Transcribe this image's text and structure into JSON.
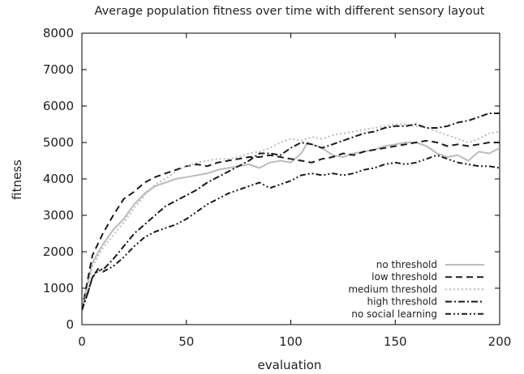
{
  "chart_data": {
    "type": "line",
    "title": "Average population fitness over time with different sensory layout",
    "xlabel": "evaluation",
    "ylabel": "fitness",
    "xlim": [
      0,
      200
    ],
    "ylim": [
      0,
      8000
    ],
    "xticks": [
      0,
      50,
      100,
      150,
      200
    ],
    "yticks": [
      0,
      1000,
      2000,
      3000,
      4000,
      5000,
      6000,
      7000,
      8000
    ],
    "grid": false,
    "legend_position": "bottom-right",
    "series": [
      {
        "name": "no threshold",
        "color": "#bbbbbb",
        "style": "solid",
        "points": [
          [
            0,
            400
          ],
          [
            3,
            1200
          ],
          [
            5,
            1700
          ],
          [
            10,
            2200
          ],
          [
            15,
            2600
          ],
          [
            20,
            2900
          ],
          [
            25,
            3300
          ],
          [
            30,
            3600
          ],
          [
            35,
            3800
          ],
          [
            40,
            3900
          ],
          [
            45,
            4000
          ],
          [
            50,
            4050
          ],
          [
            55,
            4100
          ],
          [
            60,
            4150
          ],
          [
            65,
            4250
          ],
          [
            70,
            4300
          ],
          [
            75,
            4350
          ],
          [
            80,
            4400
          ],
          [
            85,
            4300
          ],
          [
            90,
            4450
          ],
          [
            95,
            4500
          ],
          [
            100,
            4450
          ],
          [
            105,
            4700
          ],
          [
            108,
            5000
          ],
          [
            110,
            4950
          ],
          [
            115,
            4850
          ],
          [
            120,
            4650
          ],
          [
            125,
            4600
          ],
          [
            130,
            4700
          ],
          [
            135,
            4750
          ],
          [
            140,
            4800
          ],
          [
            145,
            4900
          ],
          [
            150,
            4950
          ],
          [
            155,
            5000
          ],
          [
            160,
            5000
          ],
          [
            165,
            4900
          ],
          [
            170,
            4700
          ],
          [
            175,
            4600
          ],
          [
            180,
            4650
          ],
          [
            185,
            4500
          ],
          [
            190,
            4750
          ],
          [
            195,
            4700
          ],
          [
            200,
            4850
          ]
        ]
      },
      {
        "name": "low threshold",
        "color": "#1a1a1a",
        "style": "dashed",
        "points": [
          [
            0,
            400
          ],
          [
            3,
            1300
          ],
          [
            5,
            1900
          ],
          [
            10,
            2500
          ],
          [
            15,
            3000
          ],
          [
            20,
            3450
          ],
          [
            25,
            3650
          ],
          [
            30,
            3900
          ],
          [
            35,
            4050
          ],
          [
            40,
            4150
          ],
          [
            45,
            4250
          ],
          [
            50,
            4350
          ],
          [
            55,
            4400
          ],
          [
            60,
            4350
          ],
          [
            65,
            4450
          ],
          [
            70,
            4500
          ],
          [
            75,
            4550
          ],
          [
            80,
            4600
          ],
          [
            85,
            4600
          ],
          [
            90,
            4650
          ],
          [
            95,
            4600
          ],
          [
            100,
            4550
          ],
          [
            105,
            4500
          ],
          [
            110,
            4450
          ],
          [
            115,
            4550
          ],
          [
            120,
            4600
          ],
          [
            125,
            4700
          ],
          [
            130,
            4650
          ],
          [
            135,
            4750
          ],
          [
            140,
            4800
          ],
          [
            145,
            4850
          ],
          [
            150,
            4900
          ],
          [
            155,
            4950
          ],
          [
            160,
            5000
          ],
          [
            165,
            5050
          ],
          [
            170,
            5000
          ],
          [
            175,
            4900
          ],
          [
            180,
            4950
          ],
          [
            185,
            4900
          ],
          [
            190,
            4950
          ],
          [
            195,
            5000
          ],
          [
            200,
            5000
          ]
        ]
      },
      {
        "name": "medium threshold",
        "color": "#bbbbbb",
        "style": "dotted",
        "points": [
          [
            0,
            400
          ],
          [
            3,
            1100
          ],
          [
            5,
            1600
          ],
          [
            10,
            2100
          ],
          [
            15,
            2450
          ],
          [
            20,
            2800
          ],
          [
            25,
            3200
          ],
          [
            30,
            3550
          ],
          [
            35,
            3850
          ],
          [
            40,
            4000
          ],
          [
            45,
            4200
          ],
          [
            50,
            4350
          ],
          [
            55,
            4450
          ],
          [
            60,
            4500
          ],
          [
            65,
            4550
          ],
          [
            70,
            4550
          ],
          [
            75,
            4600
          ],
          [
            80,
            4700
          ],
          [
            85,
            4750
          ],
          [
            90,
            4850
          ],
          [
            95,
            5000
          ],
          [
            100,
            5100
          ],
          [
            105,
            5050
          ],
          [
            110,
            5150
          ],
          [
            115,
            5100
          ],
          [
            120,
            5200
          ],
          [
            125,
            5250
          ],
          [
            130,
            5300
          ],
          [
            135,
            5350
          ],
          [
            140,
            5400
          ],
          [
            145,
            5450
          ],
          [
            150,
            5500
          ],
          [
            155,
            5500
          ],
          [
            160,
            5450
          ],
          [
            165,
            5400
          ],
          [
            170,
            5300
          ],
          [
            175,
            5200
          ],
          [
            180,
            5100
          ],
          [
            185,
            5000
          ],
          [
            190,
            5100
          ],
          [
            195,
            5250
          ],
          [
            200,
            5300
          ]
        ]
      },
      {
        "name": "high threshold",
        "color": "#1a1a1a",
        "style": "dashdot",
        "points": [
          [
            0,
            400
          ],
          [
            3,
            900
          ],
          [
            5,
            1300
          ],
          [
            8,
            1550
          ],
          [
            10,
            1500
          ],
          [
            15,
            1800
          ],
          [
            20,
            2150
          ],
          [
            25,
            2500
          ],
          [
            30,
            2750
          ],
          [
            35,
            3000
          ],
          [
            40,
            3250
          ],
          [
            45,
            3400
          ],
          [
            50,
            3550
          ],
          [
            55,
            3700
          ],
          [
            60,
            3900
          ],
          [
            65,
            4050
          ],
          [
            70,
            4200
          ],
          [
            75,
            4350
          ],
          [
            80,
            4500
          ],
          [
            85,
            4700
          ],
          [
            90,
            4700
          ],
          [
            95,
            4650
          ],
          [
            100,
            4850
          ],
          [
            105,
            5000
          ],
          [
            110,
            4950
          ],
          [
            115,
            4850
          ],
          [
            120,
            4950
          ],
          [
            125,
            5050
          ],
          [
            130,
            5150
          ],
          [
            135,
            5250
          ],
          [
            140,
            5300
          ],
          [
            145,
            5400
          ],
          [
            150,
            5450
          ],
          [
            155,
            5450
          ],
          [
            160,
            5500
          ],
          [
            165,
            5400
          ],
          [
            170,
            5400
          ],
          [
            175,
            5450
          ],
          [
            180,
            5550
          ],
          [
            185,
            5600
          ],
          [
            190,
            5700
          ],
          [
            195,
            5800
          ],
          [
            200,
            5800
          ]
        ]
      },
      {
        "name": "no social learning",
        "color": "#1a1a1a",
        "style": "dashdotdot",
        "points": [
          [
            0,
            400
          ],
          [
            3,
            900
          ],
          [
            5,
            1300
          ],
          [
            8,
            1500
          ],
          [
            10,
            1450
          ],
          [
            15,
            1600
          ],
          [
            20,
            1850
          ],
          [
            25,
            2150
          ],
          [
            30,
            2400
          ],
          [
            35,
            2550
          ],
          [
            40,
            2650
          ],
          [
            45,
            2750
          ],
          [
            50,
            2900
          ],
          [
            55,
            3100
          ],
          [
            60,
            3300
          ],
          [
            65,
            3450
          ],
          [
            70,
            3600
          ],
          [
            75,
            3700
          ],
          [
            80,
            3800
          ],
          [
            85,
            3900
          ],
          [
            90,
            3750
          ],
          [
            95,
            3850
          ],
          [
            100,
            3950
          ],
          [
            105,
            4100
          ],
          [
            110,
            4150
          ],
          [
            115,
            4100
          ],
          [
            120,
            4150
          ],
          [
            125,
            4100
          ],
          [
            130,
            4150
          ],
          [
            135,
            4250
          ],
          [
            140,
            4300
          ],
          [
            145,
            4400
          ],
          [
            150,
            4450
          ],
          [
            155,
            4400
          ],
          [
            160,
            4450
          ],
          [
            165,
            4550
          ],
          [
            170,
            4650
          ],
          [
            175,
            4550
          ],
          [
            180,
            4450
          ],
          [
            185,
            4400
          ],
          [
            190,
            4350
          ],
          [
            195,
            4350
          ],
          [
            200,
            4300
          ]
        ]
      }
    ]
  }
}
